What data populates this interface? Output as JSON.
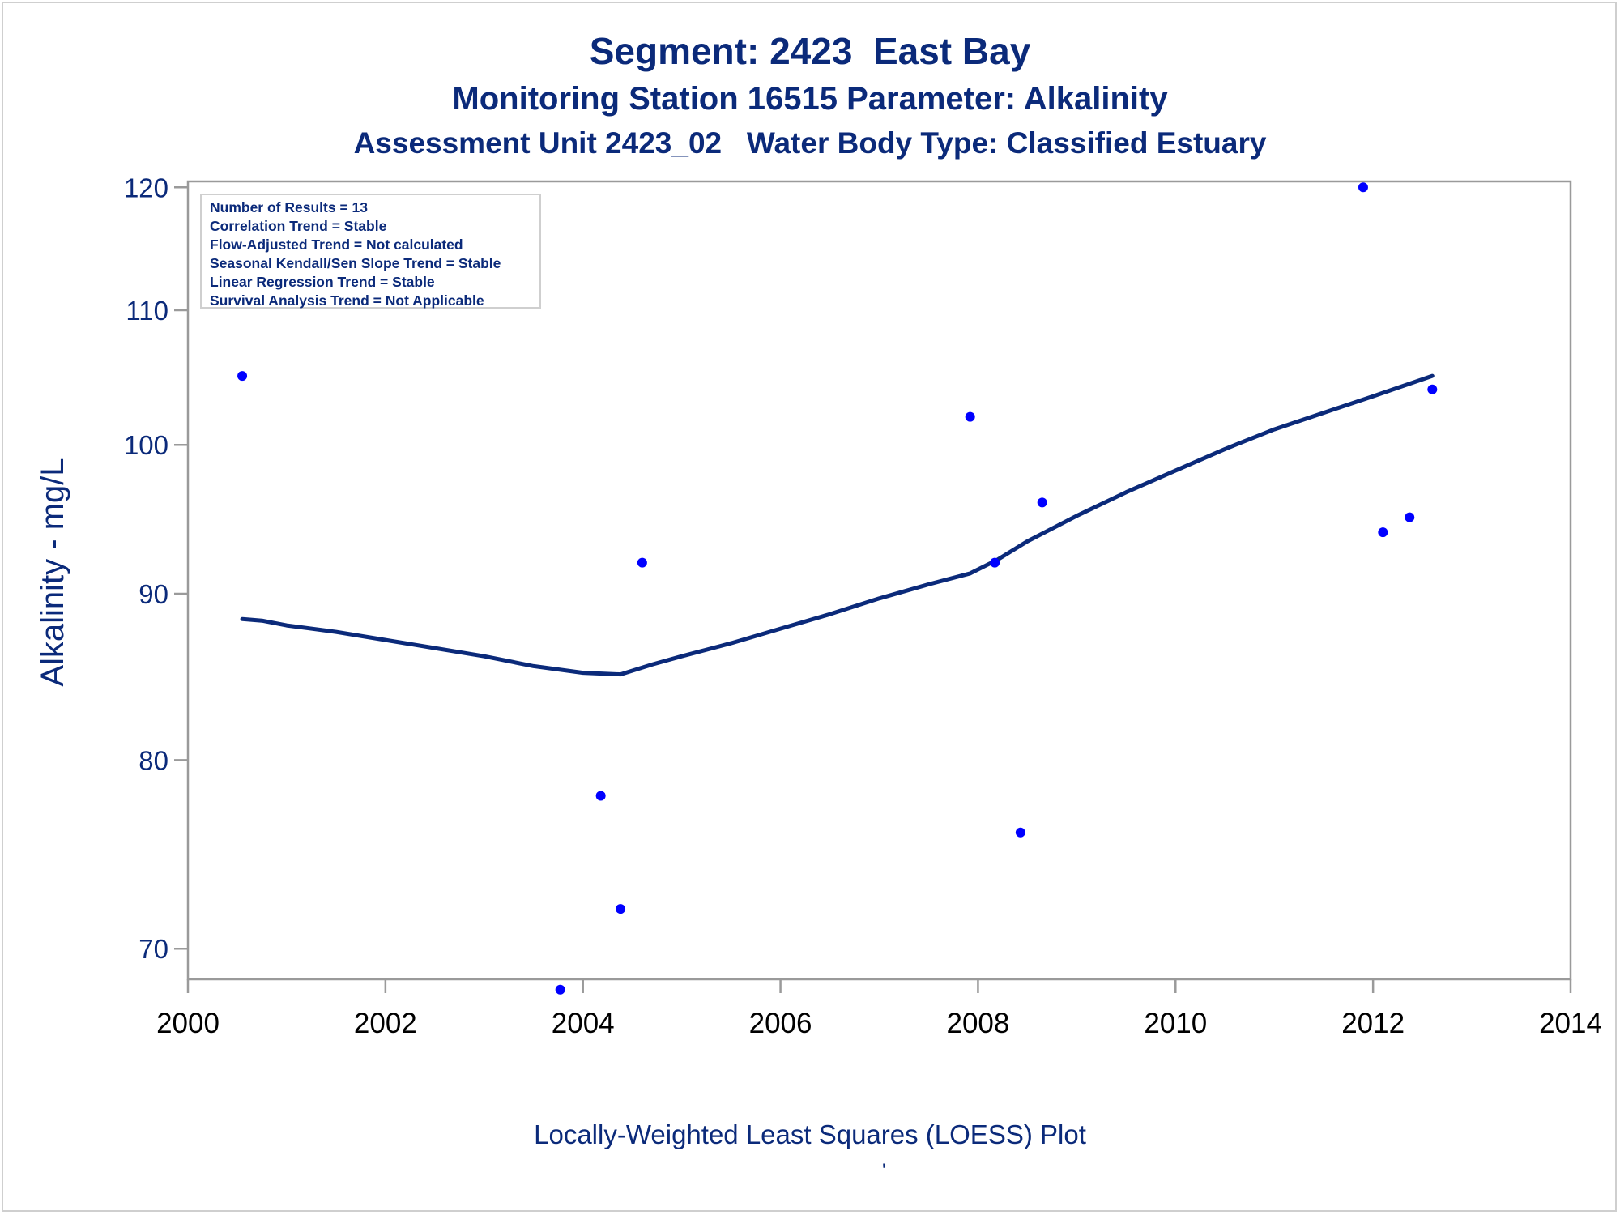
{
  "titles": {
    "line1": "Segment: 2423  East Bay",
    "line2": "Monitoring Station 16515 Parameter: Alkalinity",
    "line3": "Assessment Unit 2423_02   Water Body Type: Classified Estuary"
  },
  "stats": [
    "Number of Results = 13",
    "Correlation Trend = Stable",
    "Flow-Adjusted Trend = Not calculated",
    "Seasonal Kendall/Sen Slope Trend = Stable",
    "Linear Regression Trend = Stable",
    "Survival Analysis Trend = Not Applicable"
  ],
  "footnote": "Locally-Weighted Least Squares (LOESS) Plot",
  "footnote_mark": "'",
  "colors": {
    "text": "#0b2a7a",
    "points": "#0000ff",
    "loess_line": "#0b2a7a",
    "axis": "#9a9a9a"
  },
  "chart_data": {
    "type": "scatter",
    "title": "Segment: 2423  East Bay",
    "xlabel": "",
    "ylabel": "Alkalinity - mg/L",
    "xlim": [
      2000,
      2014
    ],
    "ylim": [
      68.5,
      120.5
    ],
    "yscale": "log",
    "xticks": [
      2000,
      2002,
      2004,
      2006,
      2008,
      2010,
      2012,
      2014
    ],
    "yticks": [
      70,
      80,
      90,
      100,
      110,
      120
    ],
    "grid": false,
    "legend": "none",
    "series": [
      {
        "kind": "scatter",
        "x": [
          2000.55,
          2003.77,
          2004.18,
          2004.38,
          2004.6,
          2007.92,
          2008.17,
          2008.43,
          2008.65,
          2011.9,
          2012.1,
          2012.37,
          2012.6
        ],
        "y": [
          105,
          68,
          78,
          72,
          92,
          102,
          92,
          76,
          96,
          120,
          94,
          95,
          104
        ]
      },
      {
        "kind": "line",
        "x": [
          2000.55,
          2000.75,
          2001.0,
          2001.5,
          2002.0,
          2002.5,
          2003.0,
          2003.5,
          2004.0,
          2004.38,
          2004.7,
          2005.0,
          2005.5,
          2006.0,
          2006.5,
          2007.0,
          2007.5,
          2007.92,
          2008.2,
          2008.5,
          2009.0,
          2009.5,
          2010.0,
          2010.5,
          2011.0,
          2011.5,
          2012.0,
          2012.6
        ],
        "y": [
          88.4,
          88.3,
          88.0,
          87.6,
          87.1,
          86.6,
          86.1,
          85.5,
          85.1,
          85.0,
          85.6,
          86.1,
          86.9,
          87.8,
          88.7,
          89.7,
          90.6,
          91.3,
          92.2,
          93.4,
          95.1,
          96.7,
          98.2,
          99.7,
          101.1,
          102.3,
          103.5,
          105.0
        ]
      }
    ]
  }
}
